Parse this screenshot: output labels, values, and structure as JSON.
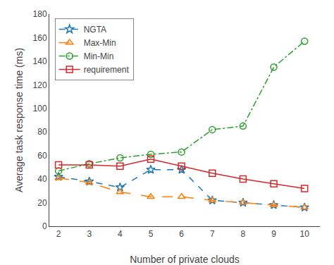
{
  "chart_data": {
    "type": "line",
    "xlabel": "Number of private clouds",
    "ylabel": "Average task response time (ms)",
    "x": [
      2,
      3,
      4,
      5,
      6,
      7,
      8,
      9,
      10
    ],
    "series": [
      {
        "name": "NGTA",
        "values": [
          42,
          38,
          33,
          48,
          48,
          22,
          20,
          18,
          16
        ],
        "marker": "star-open",
        "line_style": "dash"
      },
      {
        "name": "Max-Min",
        "values": [
          41,
          37,
          29,
          25,
          25,
          22,
          20,
          18,
          16
        ],
        "marker": "triangle-up-open",
        "line_style": "longdash"
      },
      {
        "name": "Min-Min",
        "values": [
          47,
          53,
          58,
          61,
          63,
          82,
          85,
          135,
          157
        ],
        "marker": "circle-open",
        "line_style": "dashdot"
      },
      {
        "name": "requirement",
        "values": [
          52,
          52,
          51,
          57,
          51,
          45,
          40,
          36,
          32
        ],
        "marker": "square-open",
        "line_style": "solid"
      }
    ],
    "xlim": [
      1.7,
      10.5
    ],
    "xticks": [
      2,
      3,
      4,
      5,
      6,
      7,
      8,
      9,
      10
    ],
    "ylim": [
      0,
      180
    ],
    "yticks": [
      0,
      20,
      40,
      60,
      80,
      100,
      120,
      140,
      160,
      180
    ],
    "grid": false,
    "legend": "upper left"
  }
}
